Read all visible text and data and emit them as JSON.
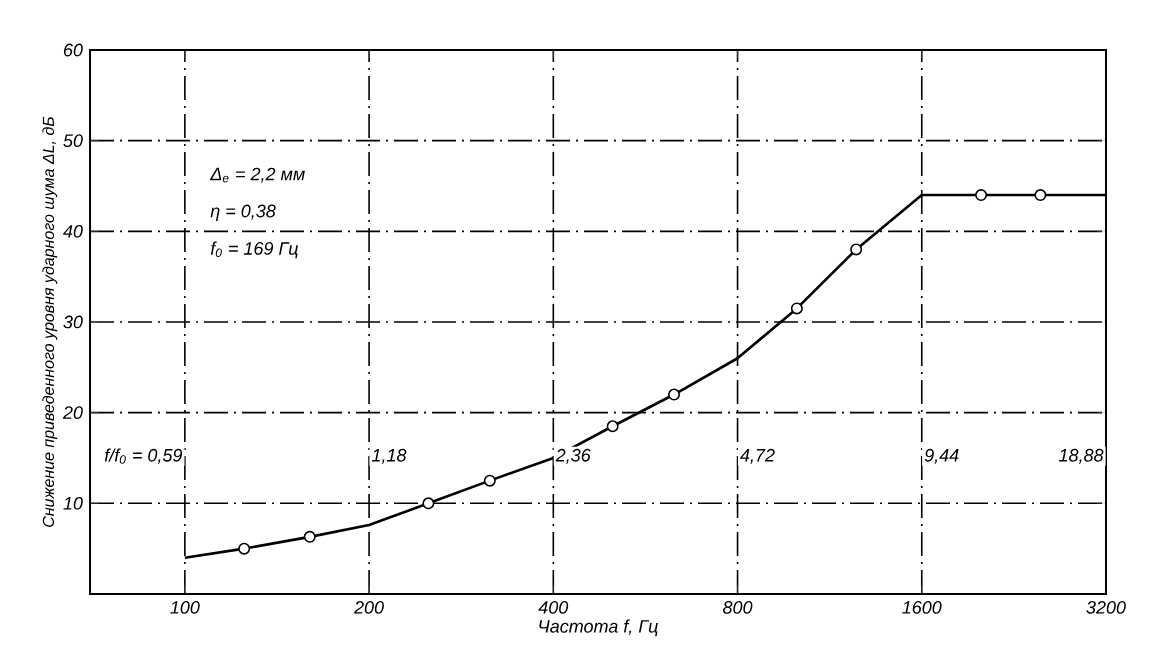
{
  "chart_data": {
    "type": "line",
    "xlabel": "Частота f, Гц",
    "ylabel": "Снижение приведенного уровня ударного шума ΔL, дБ",
    "log": "x",
    "xlim": [
      70,
      3200
    ],
    "xticks": [
      100,
      200,
      400,
      800,
      1600,
      3200
    ],
    "ylim": [
      0,
      60
    ],
    "yticks": [
      10,
      20,
      30,
      40,
      50,
      60
    ],
    "grid": true,
    "legend": false,
    "series": [
      {
        "color": "#000000",
        "marker": "none",
        "x": [
          100,
          125,
          160,
          200,
          250,
          315,
          400,
          500,
          630,
          800,
          1000,
          1250,
          1600,
          2000,
          2500,
          3200
        ],
        "values": [
          4,
          5,
          6.3,
          7.6,
          10,
          12.5,
          15,
          18.5,
          22,
          26,
          31.5,
          38,
          44,
          44,
          44,
          44
        ]
      },
      {
        "type": "scatter",
        "color": "#000000",
        "marker": "circle",
        "x": [
          125,
          160,
          250,
          315,
          500,
          630,
          1000,
          1250,
          2000,
          2500
        ],
        "values": [
          5,
          6.3,
          10,
          12.5,
          18.5,
          22,
          31.5,
          38,
          44,
          44
        ]
      }
    ],
    "annotations": [
      "Δ$_{e}$ = 2,2 мм",
      "η = 0,38",
      "f$_{0}$ = 169 Гц",
      "f/f$_{0}$ = 0,59",
      "1,18",
      "2,36",
      "4,72",
      "9,44",
      "18,88"
    ]
  }
}
